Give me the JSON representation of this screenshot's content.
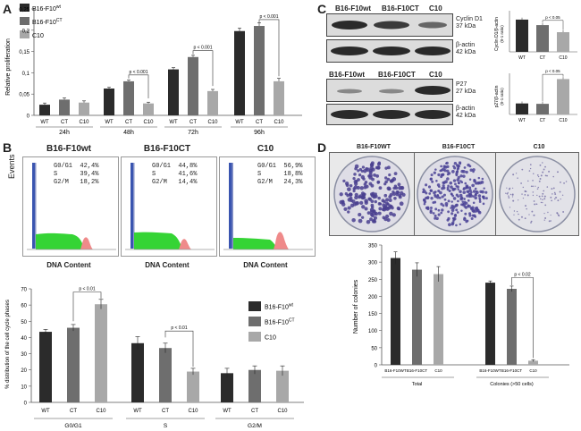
{
  "panels": {
    "a": "A",
    "b": "B",
    "c": "C",
    "d": "D"
  },
  "panel_a": {
    "legend": [
      "B16-F10wt",
      "B16-F10CT",
      "C10"
    ],
    "legend_colors": [
      "#2b2b2b",
      "#6e6e6e",
      "#a8a8a8"
    ],
    "ylabel": "Relative proliferation",
    "yticks": [
      "0",
      "0,05",
      "0,1",
      "0,15",
      "0,2",
      "0,25"
    ],
    "groups": [
      "24h",
      "48h",
      "72h",
      "96h"
    ],
    "bar_labels": [
      "WT",
      "CT",
      "C10"
    ],
    "pvalues": [
      "p < 0.001",
      "p < 0.001",
      "p < 0.001"
    ]
  },
  "panel_b": {
    "ylabel_events": "Events",
    "flow": [
      {
        "title": "B16-F10wt",
        "stats": "G0/G1  42,4%\nS      39,4%\nG2/M   18,2%"
      },
      {
        "title": "B16-F10CT",
        "stats": "G0/G1  44,8%\nS      41,6%\nG2/M   14,4%"
      },
      {
        "title": "C10",
        "stats": "G0/G1  56,9%\nS      18,8%\nG2/M   24,3%"
      }
    ],
    "flow_xlabel": "DNA Content",
    "legend": [
      "B16-F10wt",
      "B16-F10CT",
      "C10"
    ],
    "ylabel": "% distribution of the cell cycle phases",
    "yticks": [
      "0",
      "10",
      "20",
      "30",
      "40",
      "50",
      "60",
      "70"
    ],
    "groups": [
      "G0/G1",
      "S",
      "G2/M"
    ],
    "bar_labels": [
      "WT",
      "CT",
      "C10"
    ],
    "pvalues": [
      "p < 0.01",
      "p < 0.01"
    ]
  },
  "panel_c": {
    "lanes_top": [
      "B16-F10wt",
      "B16-F10CT",
      "C10"
    ],
    "lanes_bottom": [
      "B16-F10wt",
      "B16-F10CT",
      "C10"
    ],
    "bands": [
      {
        "name": "Cyclin D1",
        "size": "37 kDa"
      },
      {
        "name": "β-actin",
        "size": "42 kDa"
      },
      {
        "name": "P27",
        "size": "27 kDa"
      },
      {
        "name": "β-actin",
        "size": "42 kDa"
      }
    ],
    "mini1": {
      "ylabel": "Cyclin D1/β-actin",
      "yaxis_note": "(0-1 ratio)",
      "categories": [
        "WT",
        "CT",
        "C10"
      ],
      "values": [
        0.82,
        0.68,
        0.5
      ],
      "pvalue": "p < 0.05"
    },
    "mini2": {
      "ylabel": "p27/β-actin",
      "yaxis_note": "(0-1 ratio)",
      "categories": [
        "WT",
        "CT",
        "C10"
      ],
      "values": [
        0.28,
        0.27,
        0.9
      ],
      "pvalue": "p < 0.05"
    }
  },
  "panel_d": {
    "dish_titles": [
      "B16-F10WT",
      "B16-F10CT",
      "C10"
    ],
    "ylabel": "Number of colonies",
    "yticks": [
      "0",
      "50",
      "100",
      "150",
      "200",
      "250",
      "300",
      "350"
    ],
    "bar_labels": [
      "B16-F10WT",
      "B16-F10CT",
      "C10",
      "B16-F10WT",
      "B16-F10CT",
      "C10"
    ],
    "groups": [
      "Total",
      "Colonies (>50 cells)"
    ],
    "pvalue": "p < 0.02"
  },
  "chart_data": [
    {
      "type": "bar",
      "categories": [
        "24h",
        "48h",
        "72h",
        "96h"
      ],
      "series": [
        {
          "name": "B16-F10wt",
          "values": [
            0.025,
            0.063,
            0.108,
            0.198
          ]
        },
        {
          "name": "B16-F10CT",
          "values": [
            0.037,
            0.08,
            0.137,
            0.21
          ]
        },
        {
          "name": "C10",
          "values": [
            0.03,
            0.028,
            0.057,
            0.08
          ]
        }
      ],
      "ylabel": "Relative proliferation",
      "ylim": [
        0,
        0.25
      ]
    },
    {
      "type": "bar",
      "categories": [
        "G0/G1",
        "S",
        "G2/M"
      ],
      "series": [
        {
          "name": "B16-F10wt",
          "values": [
            43.5,
            36.5,
            18
          ]
        },
        {
          "name": "B16-F10CT",
          "values": [
            46,
            33.5,
            20
          ]
        },
        {
          "name": "C10",
          "values": [
            60.5,
            19,
            19.5
          ]
        }
      ],
      "ylabel": "% distribution of the cell cycle phases",
      "ylim": [
        0,
        70
      ]
    },
    {
      "type": "bar",
      "categories": [
        "Total",
        "Colonies (>50 cells)"
      ],
      "series": [
        {
          "name": "B16-F10WT",
          "values": [
            312,
            240
          ]
        },
        {
          "name": "B16-F10CT",
          "values": [
            278,
            222
          ]
        },
        {
          "name": "C10",
          "values": [
            265,
            12
          ]
        }
      ],
      "ylabel": "Number of colonies",
      "ylim": [
        0,
        350
      ]
    }
  ]
}
